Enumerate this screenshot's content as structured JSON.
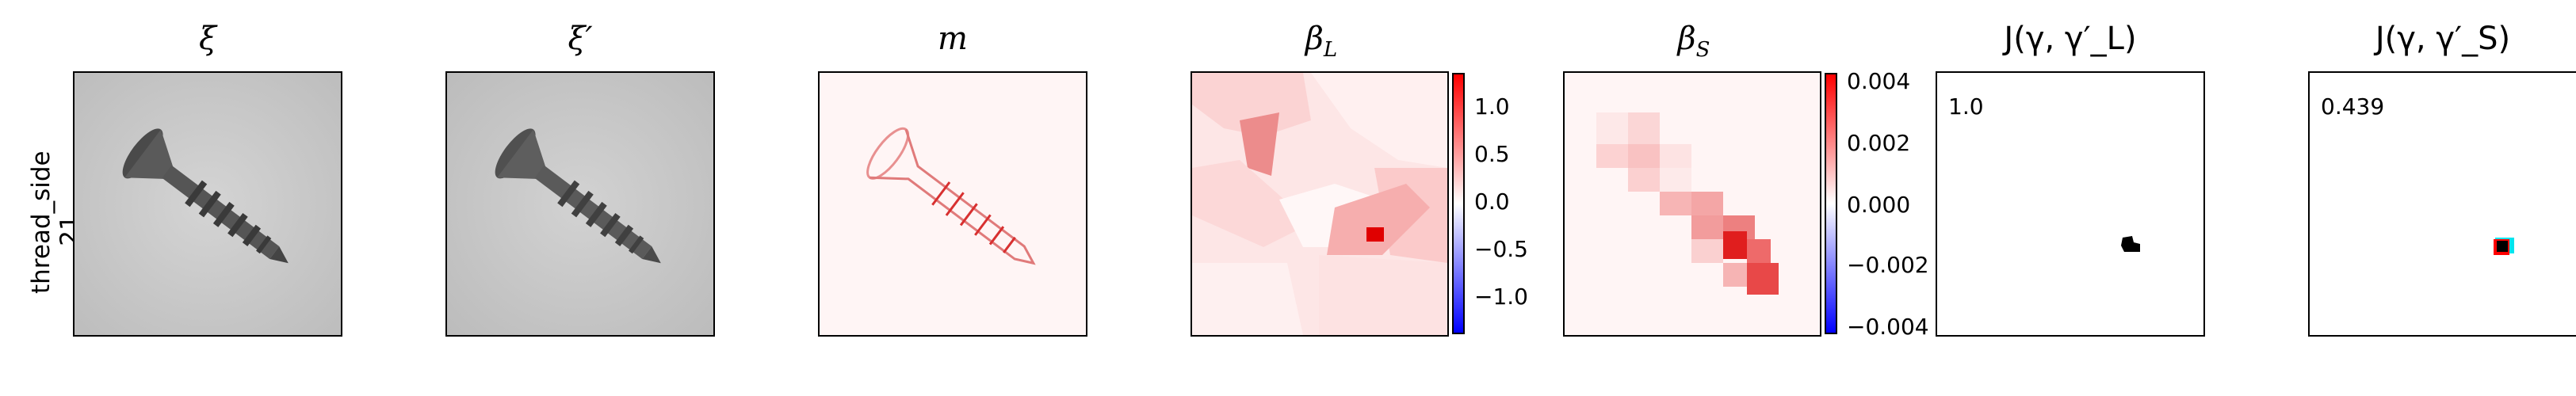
{
  "row_label": [
    "thread_side",
    "21"
  ],
  "panels": {
    "xi": {
      "title": "ξ"
    },
    "xi_prime": {
      "title": "ξ′"
    },
    "m": {
      "title": "m"
    },
    "beta_L": {
      "title": "β_L",
      "colorbar_ticks": [
        "1.0",
        "0.5",
        "0.0",
        "−0.5",
        "−1.0"
      ]
    },
    "beta_S": {
      "title": "β_S",
      "colorbar_ticks": [
        "0.004",
        "0.002",
        "0.000",
        "−0.002",
        "−0.004"
      ]
    },
    "J_L": {
      "title": "J(γ, γ′_L)",
      "value": "1.0"
    },
    "J_S": {
      "title": "J(γ, γ′_S)",
      "value": "0.439"
    }
  }
}
